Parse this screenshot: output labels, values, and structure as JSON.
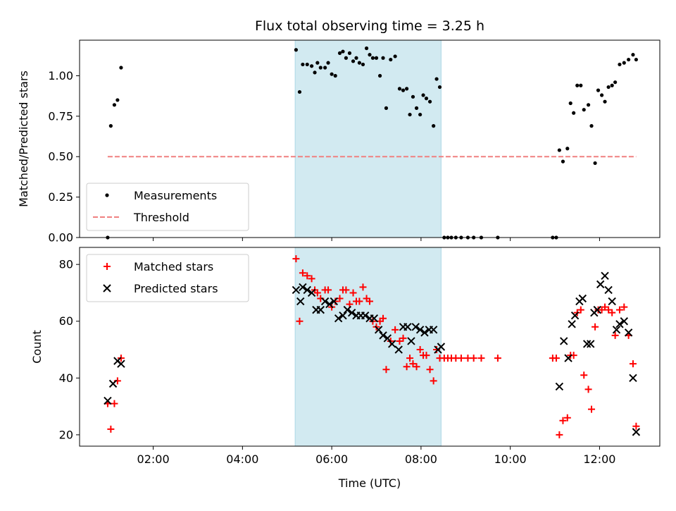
{
  "chart_data": [
    {
      "type": "scatter",
      "title": "Flux total observing time = 3.25 h",
      "xlabel": "",
      "ylabel": "Matched/Predicted stars",
      "xlim": [
        0.35,
        13.35
      ],
      "ylim": [
        0.0,
        1.22
      ],
      "yticks": [
        0.0,
        0.25,
        0.5,
        0.75,
        1.0
      ],
      "ytick_labels": [
        "0.00",
        "0.25",
        "0.50",
        "0.75",
        "1.00"
      ],
      "shaded_span": [
        5.18,
        8.45
      ],
      "shaded_color": "#add8e6",
      "legend": {
        "location": "lower-left",
        "entries": [
          "Measurements",
          "Threshold"
        ]
      },
      "series": [
        {
          "name": "Measurements",
          "marker": "dot",
          "color": "#000000",
          "points": [
            [
              0.98,
              0.0
            ],
            [
              1.05,
              0.69
            ],
            [
              1.13,
              0.82
            ],
            [
              1.2,
              0.85
            ],
            [
              1.28,
              1.05
            ],
            [
              5.2,
              1.16
            ],
            [
              5.28,
              0.9
            ],
            [
              5.35,
              1.07
            ],
            [
              5.45,
              1.07
            ],
            [
              5.55,
              1.06
            ],
            [
              5.62,
              1.02
            ],
            [
              5.68,
              1.08
            ],
            [
              5.75,
              1.05
            ],
            [
              5.85,
              1.05
            ],
            [
              5.92,
              1.08
            ],
            [
              6.0,
              1.01
            ],
            [
              6.08,
              1.0
            ],
            [
              6.18,
              1.14
            ],
            [
              6.25,
              1.15
            ],
            [
              6.32,
              1.11
            ],
            [
              6.4,
              1.14
            ],
            [
              6.48,
              1.09
            ],
            [
              6.55,
              1.11
            ],
            [
              6.62,
              1.08
            ],
            [
              6.7,
              1.07
            ],
            [
              6.78,
              1.17
            ],
            [
              6.85,
              1.13
            ],
            [
              6.92,
              1.11
            ],
            [
              7.0,
              1.11
            ],
            [
              7.08,
              1.0
            ],
            [
              7.15,
              1.11
            ],
            [
              7.22,
              0.8
            ],
            [
              7.32,
              1.1
            ],
            [
              7.42,
              1.12
            ],
            [
              7.52,
              0.92
            ],
            [
              7.6,
              0.91
            ],
            [
              7.68,
              0.92
            ],
            [
              7.75,
              0.76
            ],
            [
              7.82,
              0.87
            ],
            [
              7.9,
              0.8
            ],
            [
              7.98,
              0.76
            ],
            [
              8.05,
              0.88
            ],
            [
              8.12,
              0.86
            ],
            [
              8.2,
              0.84
            ],
            [
              8.28,
              0.69
            ],
            [
              8.35,
              0.98
            ],
            [
              8.42,
              0.93
            ],
            [
              8.52,
              0.0
            ],
            [
              8.6,
              0.0
            ],
            [
              8.68,
              0.0
            ],
            [
              8.78,
              0.0
            ],
            [
              8.9,
              0.0
            ],
            [
              9.05,
              0.0
            ],
            [
              9.18,
              0.0
            ],
            [
              9.35,
              0.0
            ],
            [
              9.72,
              0.0
            ],
            [
              10.95,
              0.0
            ],
            [
              11.03,
              0.0
            ],
            [
              11.1,
              0.54
            ],
            [
              11.18,
              0.47
            ],
            [
              11.28,
              0.55
            ],
            [
              11.35,
              0.83
            ],
            [
              11.42,
              0.77
            ],
            [
              11.5,
              0.94
            ],
            [
              11.58,
              0.94
            ],
            [
              11.65,
              0.79
            ],
            [
              11.75,
              0.82
            ],
            [
              11.82,
              0.69
            ],
            [
              11.9,
              0.46
            ],
            [
              11.97,
              0.91
            ],
            [
              12.05,
              0.88
            ],
            [
              12.12,
              0.84
            ],
            [
              12.2,
              0.93
            ],
            [
              12.28,
              0.94
            ],
            [
              12.35,
              0.96
            ],
            [
              12.45,
              1.07
            ],
            [
              12.55,
              1.08
            ],
            [
              12.65,
              1.1
            ],
            [
              12.75,
              1.13
            ],
            [
              12.82,
              1.1
            ]
          ]
        },
        {
          "name": "Threshold",
          "marker": "dashed-line",
          "color": "#f08080",
          "points": [
            [
              0.98,
              0.5
            ],
            [
              12.82,
              0.5
            ]
          ]
        }
      ]
    },
    {
      "type": "scatter",
      "title": "",
      "xlabel": "Time (UTC)",
      "ylabel": "Count",
      "xlim": [
        0.35,
        13.35
      ],
      "ylim": [
        16.0,
        86.0
      ],
      "yticks": [
        20,
        40,
        60,
        80
      ],
      "ytick_labels": [
        "20",
        "40",
        "60",
        "80"
      ],
      "xticks": [
        2,
        4,
        6,
        8,
        10,
        12
      ],
      "xtick_labels": [
        "02:00",
        "04:00",
        "06:00",
        "08:00",
        "10:00",
        "12:00"
      ],
      "shaded_span": [
        5.18,
        8.45
      ],
      "shaded_color": "#add8e6",
      "legend": {
        "location": "upper-left",
        "entries": [
          "Matched stars",
          "Predicted stars"
        ]
      },
      "series": [
        {
          "name": "Matched stars",
          "marker": "plus",
          "color": "#ff0000",
          "points": [
            [
              0.98,
              31
            ],
            [
              1.05,
              22
            ],
            [
              1.13,
              31
            ],
            [
              1.2,
              39
            ],
            [
              1.28,
              47
            ],
            [
              5.2,
              82
            ],
            [
              5.28,
              60
            ],
            [
              5.35,
              77
            ],
            [
              5.45,
              76
            ],
            [
              5.55,
              75
            ],
            [
              5.62,
              71
            ],
            [
              5.68,
              70
            ],
            [
              5.75,
              68
            ],
            [
              5.85,
              71
            ],
            [
              5.92,
              71
            ],
            [
              6.0,
              65
            ],
            [
              6.08,
              67
            ],
            [
              6.18,
              68
            ],
            [
              6.25,
              71
            ],
            [
              6.32,
              71
            ],
            [
              6.4,
              66
            ],
            [
              6.48,
              70
            ],
            [
              6.55,
              67
            ],
            [
              6.62,
              67
            ],
            [
              6.7,
              72
            ],
            [
              6.78,
              68
            ],
            [
              6.85,
              67
            ],
            [
              6.92,
              60
            ],
            [
              7.0,
              58
            ],
            [
              7.08,
              60
            ],
            [
              7.15,
              61
            ],
            [
              7.22,
              43
            ],
            [
              7.32,
              53
            ],
            [
              7.42,
              57
            ],
            [
              7.52,
              53
            ],
            [
              7.6,
              54
            ],
            [
              7.68,
              44
            ],
            [
              7.75,
              47
            ],
            [
              7.82,
              45
            ],
            [
              7.9,
              44
            ],
            [
              7.98,
              50
            ],
            [
              8.05,
              48
            ],
            [
              8.12,
              48
            ],
            [
              8.2,
              43
            ],
            [
              8.28,
              39
            ],
            [
              8.35,
              50
            ],
            [
              8.42,
              47
            ],
            [
              8.52,
              47
            ],
            [
              8.6,
              47
            ],
            [
              8.68,
              47
            ],
            [
              8.78,
              47
            ],
            [
              8.9,
              47
            ],
            [
              9.05,
              47
            ],
            [
              9.18,
              47
            ],
            [
              9.35,
              47
            ],
            [
              9.72,
              47
            ],
            [
              10.95,
              47
            ],
            [
              11.03,
              47
            ],
            [
              11.1,
              20
            ],
            [
              11.18,
              25
            ],
            [
              11.28,
              26
            ],
            [
              11.35,
              48
            ],
            [
              11.42,
              48
            ],
            [
              11.5,
              63
            ],
            [
              11.58,
              64
            ],
            [
              11.65,
              41
            ],
            [
              11.75,
              36
            ],
            [
              11.82,
              29
            ],
            [
              11.9,
              58
            ],
            [
              11.97,
              64
            ],
            [
              12.05,
              64
            ],
            [
              12.12,
              65
            ],
            [
              12.2,
              64
            ],
            [
              12.28,
              63
            ],
            [
              12.35,
              55
            ],
            [
              12.45,
              64
            ],
            [
              12.55,
              65
            ],
            [
              12.65,
              55
            ],
            [
              12.75,
              45
            ],
            [
              12.82,
              23
            ]
          ]
        },
        {
          "name": "Predicted stars",
          "marker": "x",
          "color": "#000000",
          "points": [
            [
              0.98,
              32
            ],
            [
              1.1,
              38
            ],
            [
              1.2,
              46
            ],
            [
              1.28,
              45
            ],
            [
              5.2,
              71
            ],
            [
              5.3,
              67
            ],
            [
              5.35,
              72
            ],
            [
              5.45,
              71
            ],
            [
              5.55,
              70
            ],
            [
              5.65,
              64
            ],
            [
              5.75,
              64
            ],
            [
              5.85,
              67
            ],
            [
              5.95,
              66
            ],
            [
              6.05,
              67
            ],
            [
              6.15,
              61
            ],
            [
              6.25,
              62
            ],
            [
              6.35,
              64
            ],
            [
              6.45,
              63
            ],
            [
              6.55,
              62
            ],
            [
              6.65,
              62
            ],
            [
              6.75,
              62
            ],
            [
              6.85,
              61
            ],
            [
              6.95,
              61
            ],
            [
              7.05,
              57
            ],
            [
              7.15,
              55
            ],
            [
              7.25,
              54
            ],
            [
              7.35,
              52
            ],
            [
              7.5,
              50
            ],
            [
              7.6,
              58
            ],
            [
              7.7,
              58
            ],
            [
              7.78,
              53
            ],
            [
              7.88,
              58
            ],
            [
              7.98,
              57
            ],
            [
              8.08,
              56
            ],
            [
              8.18,
              57
            ],
            [
              8.28,
              57
            ],
            [
              8.38,
              50
            ],
            [
              8.45,
              51
            ],
            [
              11.1,
              37
            ],
            [
              11.2,
              53
            ],
            [
              11.3,
              47
            ],
            [
              11.38,
              59
            ],
            [
              11.45,
              62
            ],
            [
              11.55,
              67
            ],
            [
              11.62,
              68
            ],
            [
              11.72,
              52
            ],
            [
              11.8,
              52
            ],
            [
              11.88,
              63
            ],
            [
              11.95,
              64
            ],
            [
              12.02,
              73
            ],
            [
              12.12,
              76
            ],
            [
              12.2,
              71
            ],
            [
              12.28,
              67
            ],
            [
              12.38,
              57
            ],
            [
              12.45,
              59
            ],
            [
              12.55,
              60
            ],
            [
              12.65,
              56
            ],
            [
              12.75,
              40
            ],
            [
              12.82,
              21
            ]
          ]
        }
      ]
    }
  ]
}
